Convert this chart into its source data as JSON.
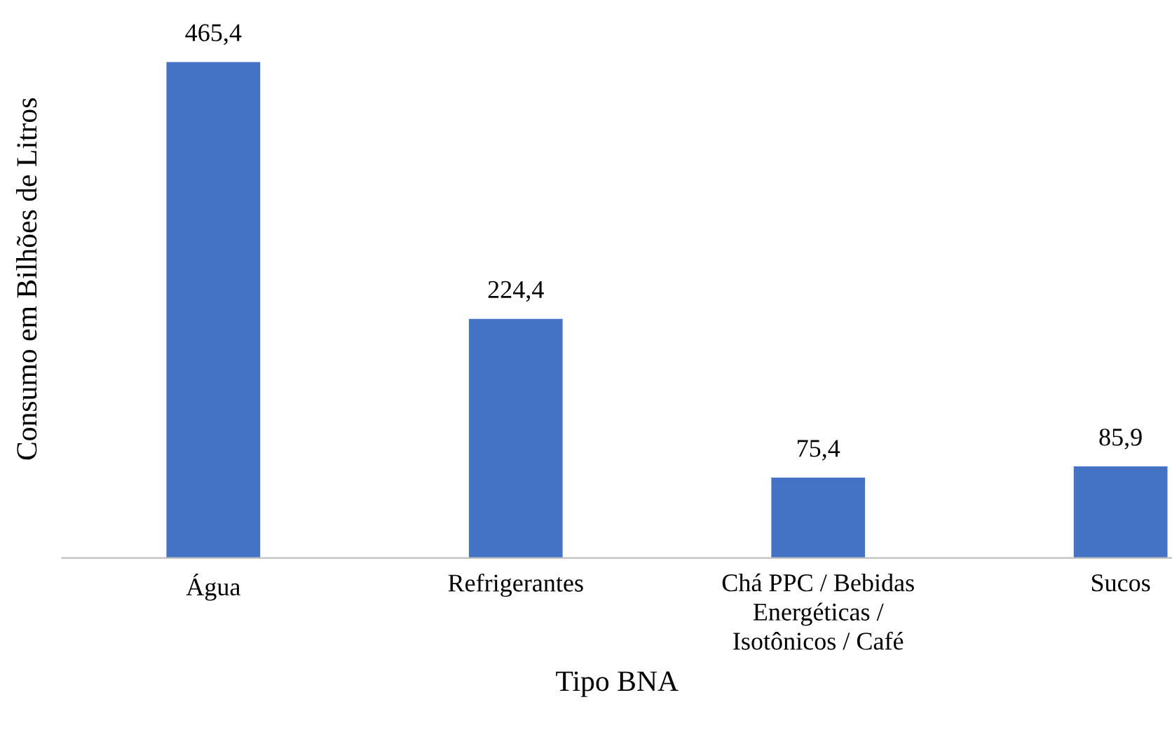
{
  "chart_data": {
    "type": "bar",
    "xlabel": "Tipo BNA",
    "ylabel": "Consumo em Bilhões de Litros",
    "categories": [
      "Água",
      "Refrigerantes",
      "Chá PPC / Bebidas\nEnergéticas /\nIsotônicos / Café",
      "Sucos"
    ],
    "values": [
      465.4,
      224.4,
      75.4,
      85.9
    ],
    "value_labels": [
      "465,4",
      "224,4",
      "75,4",
      "85,9"
    ],
    "color": "#4472c4",
    "grid": false,
    "legend": false
  }
}
